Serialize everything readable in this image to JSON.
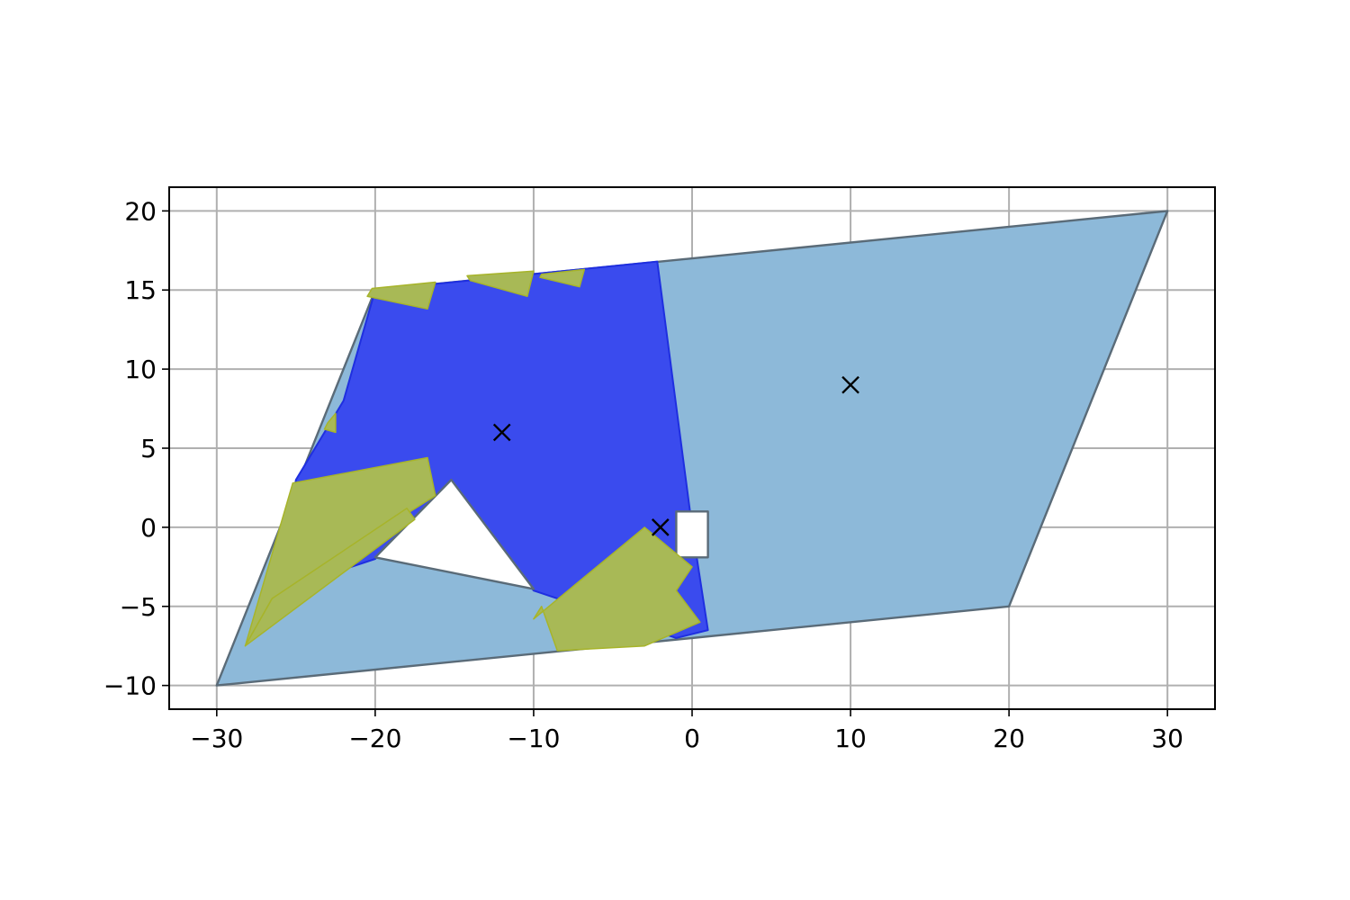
{
  "chart_data": {
    "type": "area",
    "title": "",
    "xlabel": "",
    "ylabel": "",
    "xlim": [
      -33,
      33
    ],
    "ylim": [
      -11.5,
      21.5
    ],
    "grid": true,
    "xticks": [
      -30,
      -20,
      -10,
      0,
      10,
      20,
      30
    ],
    "yticks": [
      -10,
      -5,
      0,
      5,
      10,
      15,
      20
    ],
    "xtick_labels": [
      "−30",
      "−20",
      "−10",
      "0",
      "10",
      "20",
      "30"
    ],
    "ytick_labels": [
      "−10",
      "−5",
      "0",
      "5",
      "10",
      "15",
      "20"
    ],
    "regions": [
      {
        "kind": "domain",
        "color": "#8db9d9",
        "edge": "#5a6b78",
        "points": [
          [
            -30,
            -10
          ],
          [
            20,
            -5
          ],
          [
            30,
            20
          ],
          [
            -20,
            15
          ]
        ]
      },
      {
        "kind": "subdomain",
        "color": "#3a4bee",
        "edge": "#1f2fe0",
        "points": [
          [
            -20,
            15
          ],
          [
            -2.2,
            16.8
          ],
          [
            0,
            0
          ],
          [
            1,
            -6.5
          ],
          [
            -1,
            -7
          ],
          [
            -10,
            -4
          ],
          [
            -15.2,
            3
          ],
          [
            -20,
            -2
          ],
          [
            -26,
            -4
          ],
          [
            -25,
            3
          ],
          [
            -22,
            8
          ]
        ]
      },
      {
        "kind": "hole",
        "color": "#ffffff",
        "edge": "#5a6b78",
        "points": [
          [
            -20,
            -1.9
          ],
          [
            -15.2,
            3
          ],
          [
            -10,
            -3.9
          ]
        ]
      },
      {
        "kind": "hole",
        "color": "#ffffff",
        "edge": "#5a6b78",
        "points": [
          [
            -1,
            1
          ],
          [
            1,
            1
          ],
          [
            1,
            -1.9
          ],
          [
            -1,
            -1.9
          ]
        ]
      }
    ],
    "patches": [
      {
        "color": "#a8b956",
        "points": [
          [
            -28.2,
            -7.5
          ],
          [
            -25.2,
            2.8
          ],
          [
            -16.7,
            4.4
          ],
          [
            -16.2,
            2.0
          ],
          [
            -26.5,
            -4.5
          ]
        ]
      },
      {
        "color": "#a8b956",
        "points": [
          [
            -28.2,
            -7.5
          ],
          [
            -26.5,
            -4.5
          ],
          [
            -18.0,
            1.2
          ],
          [
            -17.5,
            0.5
          ]
        ]
      },
      {
        "color": "#a8b956",
        "points": [
          [
            -10,
            -5.8
          ],
          [
            -3,
            0
          ],
          [
            0,
            -2.5
          ],
          [
            -1,
            -4
          ],
          [
            0.5,
            -6
          ],
          [
            -3,
            -7.5
          ],
          [
            -8.5,
            -7.8
          ],
          [
            -9.5,
            -5
          ]
        ]
      },
      {
        "color": "#a8b956",
        "points": [
          [
            -20.2,
            15.1
          ],
          [
            -16.2,
            15.5
          ],
          [
            -16.7,
            13.8
          ],
          [
            -20.5,
            14.6
          ]
        ]
      },
      {
        "color": "#a8b956",
        "points": [
          [
            -14.2,
            15.9
          ],
          [
            -10,
            16.2
          ],
          [
            -10.4,
            14.6
          ],
          [
            -14.0,
            15.6
          ]
        ]
      },
      {
        "color": "#a8b956",
        "points": [
          [
            -9.5,
            16.0
          ],
          [
            -6.8,
            16.3
          ],
          [
            -7.1,
            15.2
          ],
          [
            -9.6,
            15.8
          ]
        ]
      },
      {
        "color": "#a8b956",
        "points": [
          [
            -23.0,
            6.6
          ],
          [
            -22.5,
            7.2
          ],
          [
            -22.5,
            6.0
          ],
          [
            -23.2,
            6.2
          ]
        ]
      }
    ],
    "markers": {
      "symbol": "x",
      "color": "#000000",
      "points": [
        [
          -12,
          6
        ],
        [
          -2,
          0
        ],
        [
          10,
          9
        ]
      ]
    }
  }
}
